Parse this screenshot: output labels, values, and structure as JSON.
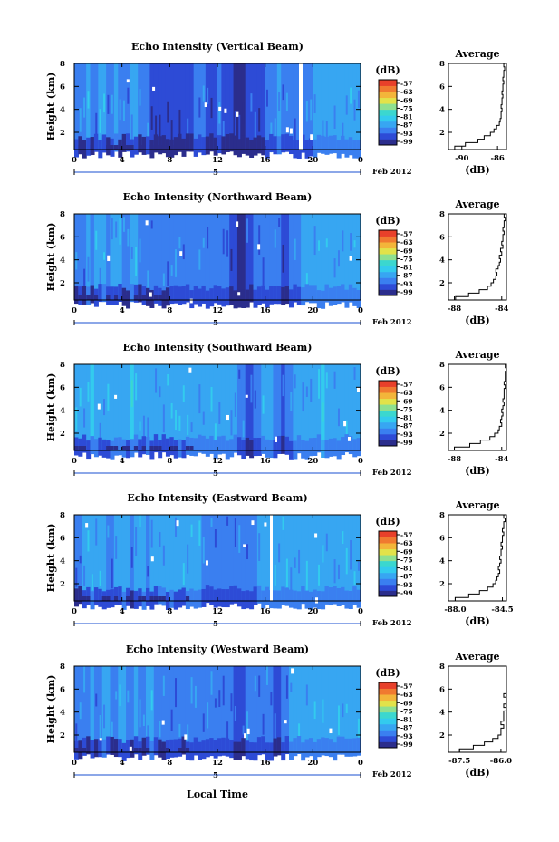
{
  "figure": {
    "xlabel": "Local Time",
    "height_label": "Height (km)",
    "unit": "(dB)",
    "avg_title": "Average",
    "avg_xlabel": "(dB)",
    "date_suffix": "Feb 2012",
    "date_tick": "5",
    "x_ticks": [
      "0",
      "4",
      "8",
      "12",
      "16",
      "20",
      "0"
    ],
    "y_ticks": [
      "2",
      "4",
      "6",
      "8"
    ],
    "colorbar_ticks": [
      "-57",
      "-63",
      "-69",
      "-75",
      "-81",
      "-87",
      "-93",
      "-99"
    ],
    "colors": [
      "#2b2d8c",
      "#2d4bd6",
      "#3a7ff0",
      "#37a6f2",
      "#33cbee",
      "#3bd7cf",
      "#8ee090",
      "#e2e24a",
      "#f3b53a",
      "#f07a30",
      "#e8402a"
    ]
  },
  "chart_data": [
    {
      "type": "heatmap",
      "title": "Echo Intensity (Vertical Beam)",
      "x_range": [
        0,
        24
      ],
      "ylim": [
        0.5,
        8
      ],
      "columns": [
        2,
        2,
        2,
        3,
        2,
        2,
        3,
        3,
        2,
        2,
        3,
        2,
        2,
        2,
        3,
        3,
        2,
        2,
        2,
        1,
        1,
        1,
        1,
        1,
        1,
        1,
        1,
        1,
        1,
        1,
        2,
        2,
        2,
        1,
        1,
        1,
        2,
        1,
        1,
        1,
        0,
        0,
        0,
        1,
        1,
        1,
        1,
        1,
        2,
        2,
        2,
        3,
        2,
        2,
        2,
        2,
        2,
        2,
        2,
        2,
        3,
        3,
        3,
        3,
        3,
        3,
        3,
        3,
        3,
        3,
        3,
        3
      ],
      "avg_xticks": [
        "-90",
        "-86"
      ],
      "avg_xlim": [
        -91.5,
        -85
      ],
      "profile": [
        -90.8,
        -89.6,
        -88.2,
        -87.5,
        -86.8,
        -86.4,
        -86.1,
        -85.8,
        -85.7,
        -85.6,
        -85.6,
        -85.5,
        -85.6,
        -85.5,
        -85.5,
        -85.4,
        -85.5,
        -85.4,
        -85.4,
        -85.3,
        -85.4,
        -85.3,
        -85.3,
        -85.2,
        -85.3
      ]
    },
    {
      "type": "heatmap",
      "title": "Echo Intensity (Northward Beam)",
      "x_range": [
        0,
        24
      ],
      "ylim": [
        0.5,
        8
      ],
      "columns": [
        2,
        2,
        2,
        3,
        2,
        3,
        3,
        3,
        2,
        3,
        3,
        3,
        2,
        2,
        3,
        3,
        2,
        2,
        2,
        2,
        2,
        2,
        2,
        2,
        2,
        2,
        2,
        2,
        2,
        2,
        2,
        2,
        2,
        2,
        2,
        2,
        2,
        2,
        2,
        1,
        1,
        0,
        0,
        1,
        1,
        2,
        2,
        2,
        2,
        2,
        2,
        2,
        1,
        1,
        2,
        2,
        2,
        3,
        3,
        3,
        3,
        3,
        3,
        3,
        3,
        3,
        3,
        3,
        3,
        3,
        3,
        3
      ],
      "avg_xticks": [
        "-88",
        "-84"
      ],
      "avg_xlim": [
        -88.5,
        -83.6
      ],
      "profile": [
        -87.9,
        -86.8,
        -85.9,
        -85.2,
        -84.9,
        -84.7,
        -84.5,
        -84.4,
        -84.5,
        -84.3,
        -84.2,
        -84.1,
        -84.2,
        -84.0,
        -84.1,
        -83.9,
        -84.0,
        -83.9,
        -83.9,
        -83.8,
        -83.9,
        -83.8,
        -83.8,
        -83.7,
        -83.8
      ]
    },
    {
      "type": "heatmap",
      "title": "Echo Intensity (Southward Beam)",
      "x_range": [
        0,
        24
      ],
      "ylim": [
        0.5,
        8
      ],
      "columns": [
        3,
        3,
        3,
        3,
        4,
        3,
        3,
        3,
        3,
        3,
        3,
        3,
        3,
        3,
        4,
        3,
        3,
        3,
        3,
        3,
        3,
        3,
        3,
        3,
        3,
        3,
        3,
        3,
        3,
        3,
        3,
        3,
        3,
        3,
        3,
        3,
        3,
        3,
        3,
        3,
        3,
        2,
        2,
        1,
        1,
        2,
        2,
        3,
        3,
        3,
        2,
        2,
        1,
        2,
        2,
        3,
        3,
        3,
        3,
        3,
        3,
        3,
        4,
        3,
        3,
        3,
        3,
        3,
        3,
        3,
        3,
        3
      ],
      "avg_xticks": [
        "-88",
        "-84"
      ],
      "avg_xlim": [
        -88.5,
        -83.6
      ],
      "profile": [
        -88.0,
        -86.7,
        -85.8,
        -85.0,
        -84.6,
        -84.3,
        -84.2,
        -84.0,
        -84.1,
        -84.0,
        -83.9,
        -84.0,
        -83.9,
        -83.8,
        -83.9,
        -83.8,
        -83.8,
        -83.8,
        -83.7,
        -83.8,
        -83.7,
        -83.7,
        -83.7,
        -83.6,
        -83.7
      ]
    },
    {
      "type": "heatmap",
      "title": "Echo Intensity (Eastward Beam)",
      "x_range": [
        0,
        24
      ],
      "ylim": [
        0.5,
        8
      ],
      "columns": [
        2,
        2,
        3,
        3,
        3,
        3,
        3,
        3,
        2,
        2,
        3,
        3,
        3,
        3,
        2,
        3,
        3,
        3,
        2,
        3,
        3,
        3,
        3,
        3,
        3,
        3,
        3,
        3,
        3,
        3,
        3,
        3,
        2,
        2,
        2,
        2,
        2,
        2,
        2,
        2,
        2,
        2,
        2,
        2,
        2,
        2,
        3,
        3,
        3,
        3,
        3,
        3,
        3,
        3,
        3,
        3,
        3,
        3,
        3,
        3,
        3,
        3,
        3,
        3,
        3,
        3,
        3,
        3,
        3,
        3,
        3,
        3
      ],
      "avg_xticks": [
        "-88.0",
        "-84.5"
      ],
      "avg_xlim": [
        -88.5,
        -84.2
      ],
      "profile": [
        -88.0,
        -87.0,
        -86.2,
        -85.6,
        -85.2,
        -85.0,
        -84.9,
        -84.8,
        -84.7,
        -84.8,
        -84.7,
        -84.6,
        -84.7,
        -84.6,
        -84.6,
        -84.5,
        -84.6,
        -84.5,
        -84.5,
        -84.4,
        -84.5,
        -84.4,
        -84.4,
        -84.3,
        -84.4
      ]
    },
    {
      "type": "heatmap",
      "title": "Echo Intensity (Westward Beam)",
      "x_range": [
        0,
        24
      ],
      "ylim": [
        0.5,
        8
      ],
      "columns": [
        2,
        2,
        2,
        2,
        3,
        2,
        2,
        3,
        3,
        2,
        2,
        3,
        3,
        2,
        2,
        3,
        2,
        2,
        3,
        3,
        2,
        2,
        2,
        2,
        2,
        2,
        2,
        2,
        2,
        2,
        2,
        2,
        2,
        2,
        2,
        2,
        2,
        2,
        2,
        2,
        1,
        1,
        1,
        2,
        2,
        2,
        2,
        2,
        2,
        2,
        1,
        1,
        2,
        2,
        3,
        3,
        3,
        3,
        3,
        3,
        3,
        3,
        3,
        3,
        3,
        3,
        3,
        3,
        3,
        3,
        3,
        3
      ],
      "avg_xticks": [
        "-87.5",
        "-86.0"
      ],
      "avg_xlim": [
        -87.9,
        -85.8
      ],
      "profile": [
        -87.5,
        -87.0,
        -86.6,
        -86.3,
        -86.1,
        -86.0,
        -86.0,
        -85.9,
        -86.0,
        -85.9,
        -85.9,
        -85.9,
        -85.8,
        -85.9,
        -85.8,
        -85.8,
        -85.9,
        -85.8,
        -85.8,
        -85.8,
        -85.8,
        -85.8,
        -85.8,
        -85.8,
        -85.8
      ]
    }
  ]
}
